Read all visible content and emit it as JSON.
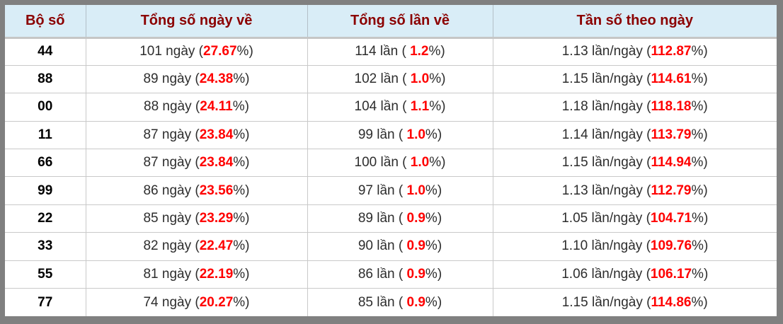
{
  "table": {
    "headers": [
      "Bộ số",
      "Tổng số ngày về",
      "Tổng số lần về",
      "Tần số theo ngày"
    ],
    "pct_close": "%)",
    "rows": [
      {
        "pair": "44",
        "days_prefix": "101 ngày (",
        "days_pct": "27.67",
        "times_prefix": "114 lần ( 1.2",
        "freq_prefix": "1.13 lần/ngày (",
        "freq_pct": "112.87"
      },
      {
        "pair": "88",
        "days_prefix": "89 ngày (",
        "days_pct": "24.38",
        "times_prefix": "102 lần ( 1.0",
        "freq_prefix": "1.15 lần/ngày (",
        "freq_pct": "114.61"
      },
      {
        "pair": "00",
        "days_prefix": "88 ngày (",
        "days_pct": "24.11",
        "times_prefix": "104 lần ( 1.1",
        "freq_prefix": "1.18 lần/ngày (",
        "freq_pct": "118.18"
      },
      {
        "pair": "11",
        "days_prefix": "87 ngày (",
        "days_pct": "23.84",
        "times_prefix": "99 lần ( 1.0",
        "freq_prefix": "1.14 lần/ngày (",
        "freq_pct": "113.79"
      },
      {
        "pair": "66",
        "days_prefix": "87 ngày (",
        "days_pct": "23.84",
        "times_prefix": "100 lần ( 1.0",
        "freq_prefix": "1.15 lần/ngày (",
        "freq_pct": "114.94"
      },
      {
        "pair": "99",
        "days_prefix": "86 ngày (",
        "days_pct": "23.56",
        "times_prefix": "97 lần ( 1.0",
        "freq_prefix": "1.13 lần/ngày (",
        "freq_pct": "112.79"
      },
      {
        "pair": "22",
        "days_prefix": "85 ngày (",
        "days_pct": "23.29",
        "times_prefix": "89 lần ( 0.9",
        "freq_prefix": "1.05 lần/ngày (",
        "freq_pct": "104.71"
      },
      {
        "pair": "33",
        "days_prefix": "82 ngày (",
        "days_pct": "22.47",
        "times_prefix": "90 lần ( 0.9",
        "freq_prefix": "1.10 lần/ngày (",
        "freq_pct": "109.76"
      },
      {
        "pair": "55",
        "days_prefix": "81 ngày (",
        "days_pct": "22.19",
        "times_prefix": "86 lần ( 0.9",
        "freq_prefix": "1.06 lần/ngày (",
        "freq_pct": "106.17"
      },
      {
        "pair": "77",
        "days_prefix": "74 ngày (",
        "days_pct": "20.27",
        "times_prefix": "85 lần ( 0.9",
        "freq_prefix": "1.15 lần/ngày (",
        "freq_pct": "114.86"
      }
    ],
    "times_pcts": [
      "1.2",
      "1.0",
      "1.1",
      "1.0",
      "1.0",
      "1.0",
      "0.9",
      "0.9",
      "0.9",
      "0.9"
    ]
  },
  "chart_data": {
    "type": "table",
    "columns": [
      "Bộ số",
      "Tổng số ngày về",
      "Tổng số lần về",
      "Tần số theo ngày"
    ],
    "rows": [
      [
        "44",
        "101 ngày (27.67%)",
        "114 lần ( 1.2%)",
        "1.13 lần/ngày (112.87%)"
      ],
      [
        "88",
        "89 ngày (24.38%)",
        "102 lần ( 1.0%)",
        "1.15 lần/ngày (114.61%)"
      ],
      [
        "00",
        "88 ngày (24.11%)",
        "104 lần ( 1.1%)",
        "1.18 lần/ngày (118.18%)"
      ],
      [
        "11",
        "87 ngày (23.84%)",
        "99 lần ( 1.0%)",
        "1.14 lần/ngày (113.79%)"
      ],
      [
        "66",
        "87 ngày (23.84%)",
        "100 lần ( 1.0%)",
        "1.15 lần/ngày (114.94%)"
      ],
      [
        "99",
        "86 ngày (23.56%)",
        "97 lần ( 1.0%)",
        "1.13 lần/ngày (112.79%)"
      ],
      [
        "22",
        "85 ngày (23.29%)",
        "89 lần ( 0.9%)",
        "1.05 lần/ngày (104.71%)"
      ],
      [
        "33",
        "82 ngày (22.47%)",
        "90 lần ( 0.9%)",
        "1.10 lần/ngày (109.76%)"
      ],
      [
        "55",
        "81 ngày (22.19%)",
        "86 lần ( 0.9%)",
        "1.06 lần/ngày (106.17%)"
      ],
      [
        "77",
        "74 ngày (20.27%)",
        "85 lần ( 0.9%)",
        "1.15 lần/ngày (114.86%)"
      ]
    ]
  },
  "colors": {
    "frame_gray": "#808080",
    "header_bg": "#d9edf7",
    "header_text": "#8b0000",
    "highlight_red": "#ff0000",
    "body_text": "#2d2d2d",
    "grid_line": "#c9c9c9"
  }
}
